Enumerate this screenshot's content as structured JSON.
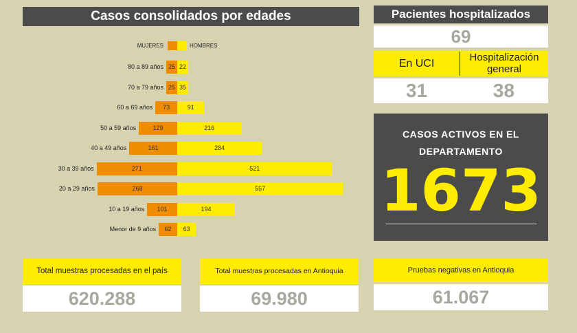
{
  "chart_title": "Casos consolidados por edades",
  "chart_data": {
    "type": "bar",
    "orientation": "horizontal-population-pyramid",
    "categories": [
      "80 a 89 años",
      "70 a 79 años",
      "60 a 69 años",
      "50 a 59 años",
      "40 a 49 años",
      "30 a 39 años",
      "20 a 29 años",
      "10 a 19 años",
      "Menor de 9 años"
    ],
    "series": [
      {
        "name": "MUJERES",
        "color": "#f08c00",
        "values": [
          25,
          25,
          73,
          129,
          161,
          271,
          268,
          101,
          62
        ]
      },
      {
        "name": "HOMBRES",
        "color": "#ffec00",
        "values": [
          22,
          35,
          91,
          216,
          284,
          521,
          557,
          194,
          63
        ]
      }
    ],
    "legend": "top"
  },
  "hospital": {
    "title": "Pacientes hospitalizados",
    "total": "69",
    "uci_label": "En UCI",
    "general_label_1": "Hospitalización",
    "general_label_2": "general",
    "uci": "31",
    "general": "38"
  },
  "activos": {
    "line1": "CASOS ACTIVOS EN EL",
    "line2": "DEPARTAMENTO",
    "value": "1673"
  },
  "boxes": [
    {
      "label": "Total muestras procesadas en el país",
      "value": "620.288"
    },
    {
      "label": "Total muestras procesadas en Antioquia",
      "value": "69.980"
    },
    {
      "label": "Pruebas negativas en Antioquia",
      "value": "61.067"
    }
  ]
}
